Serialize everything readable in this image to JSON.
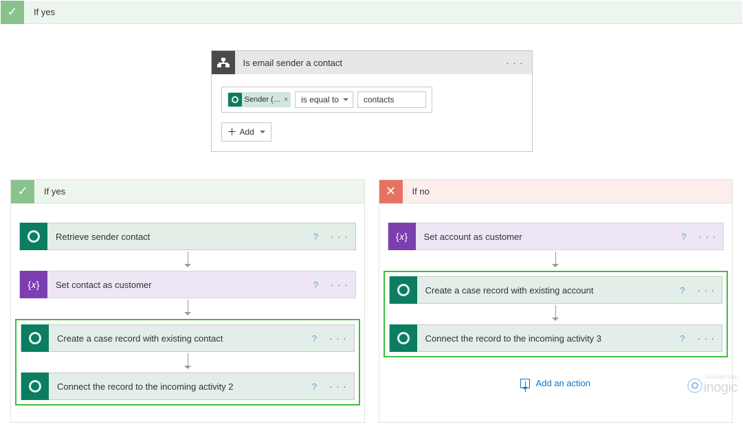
{
  "colors": {
    "yes_header_bg": "#edf6ee",
    "no_header_bg": "#fdeeec",
    "yes_icon_bg": "#89c28c",
    "no_icon_bg": "#e6735f",
    "cds_icon_bg": "#0b7d60",
    "var_icon_bg": "#7b3fb0",
    "cds_card_bg": "#e4eee8",
    "var_card_bg": "#efe6f5",
    "highlight_border": "#3bbf3b",
    "link_blue": "#0078d4"
  },
  "top": {
    "if_yes_label": "If yes"
  },
  "condition": {
    "title": "Is email sender a contact",
    "token_label": "Sender (…",
    "operator": "is equal to",
    "value": "contacts",
    "add_label": "Add"
  },
  "yes_branch": {
    "header": "If yes",
    "cards": {
      "retrieve": "Retrieve sender contact",
      "set_var": "Set contact as customer",
      "create": "Create a case record with existing contact",
      "connect": "Connect the record to the incoming activity 2"
    }
  },
  "no_branch": {
    "header": "If no",
    "cards": {
      "set_var": "Set account as customer",
      "create": "Create a case record with existing account",
      "connect": "Connect the record to the incoming activity 3"
    },
    "add_action": "Add an action"
  },
  "icons": {
    "help": "?",
    "dots": "· · ·",
    "check": "✓",
    "cross": "✕",
    "plus": "＋",
    "var": "{𝑥}"
  },
  "watermark": {
    "brand": "inogic",
    "tag": "innovative logic"
  }
}
